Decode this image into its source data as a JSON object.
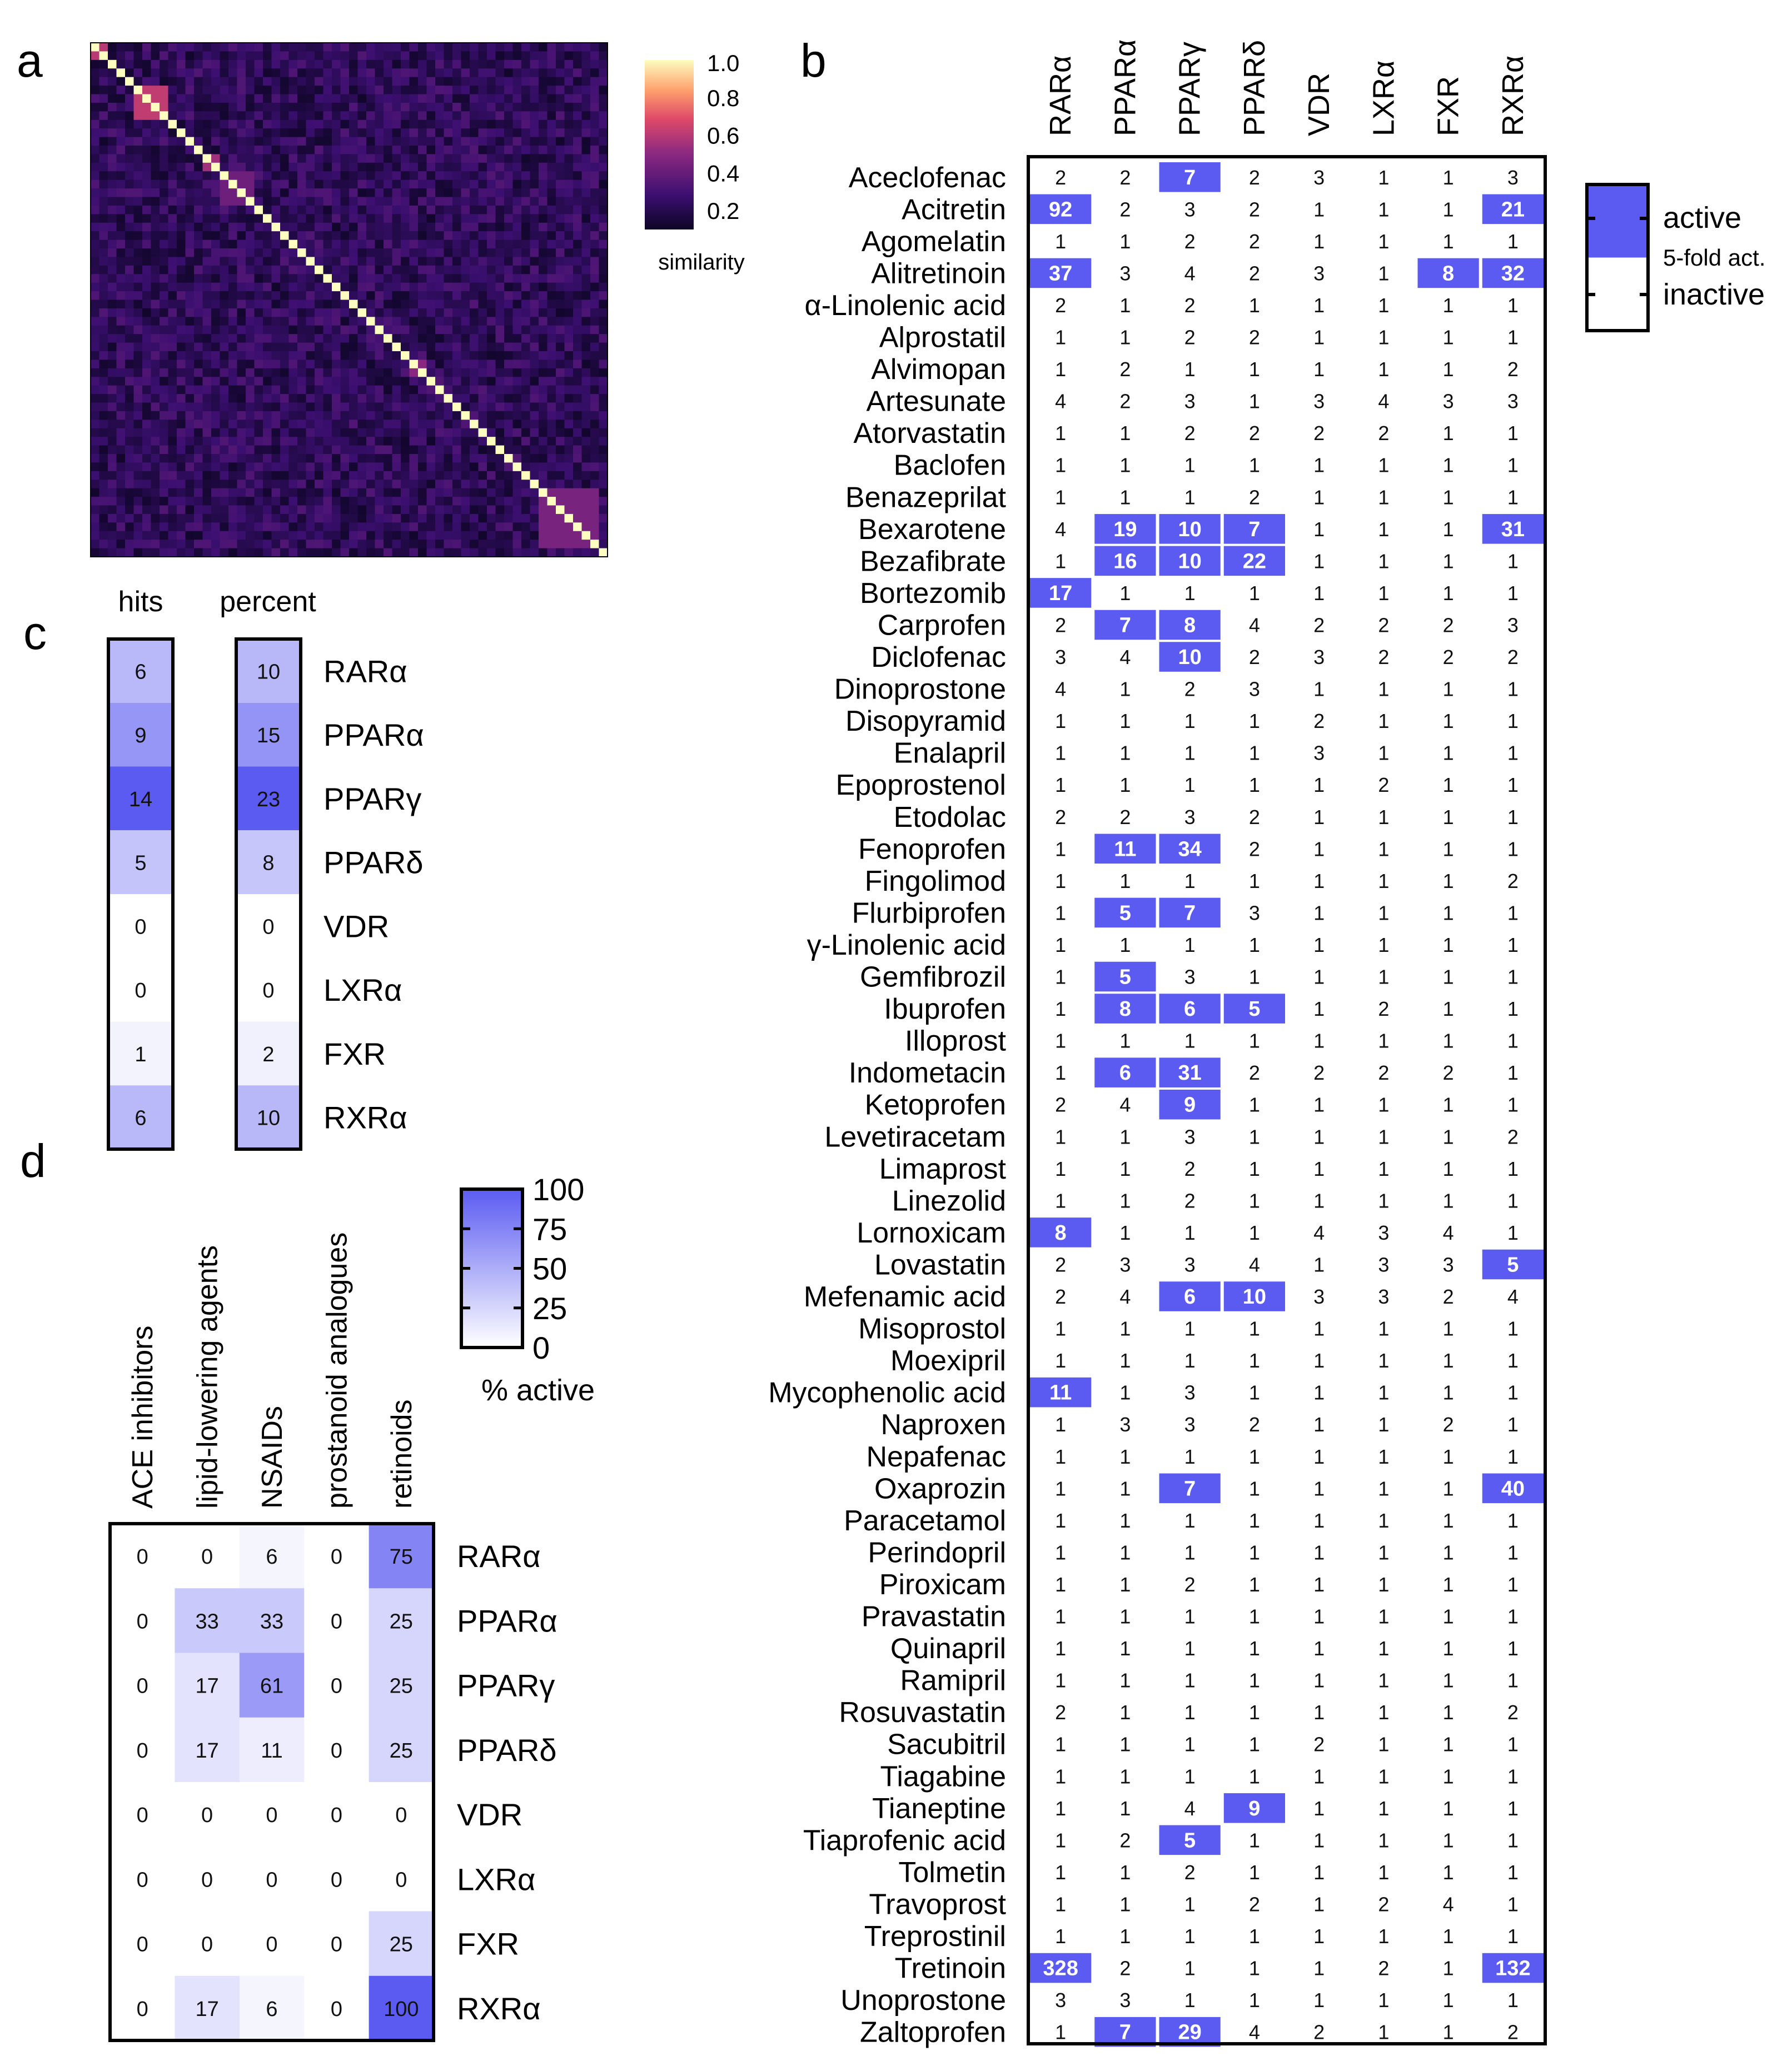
{
  "figure": {
    "panel_letters": [
      "a",
      "b",
      "c",
      "d"
    ]
  },
  "colors": {
    "active": "#5b5bf2",
    "white": "#ffffff",
    "heatmap_dark": "#0d0525",
    "heatmap_light": "#fcfdbf",
    "border": "#000000"
  },
  "chart_data": [
    {
      "panel": "a",
      "type": "heatmap",
      "n": 60,
      "colorbar": {
        "ticks": [
          "1.0",
          "0.8",
          "0.6",
          "0.4",
          "0.2"
        ],
        "label": "similarity",
        "range": [
          0.1,
          1.0
        ]
      },
      "blocks": [
        {
          "from": 0,
          "to": 1,
          "value": 0.6
        },
        {
          "from": 5,
          "to": 8,
          "value": 0.62
        },
        {
          "from": 13,
          "to": 14,
          "value": 0.55
        },
        {
          "from": 15,
          "to": 18,
          "value": 0.42
        },
        {
          "from": 37,
          "to": 38,
          "value": 0.5
        },
        {
          "from": 52,
          "to": 58,
          "value": 0.45
        }
      ]
    },
    {
      "panel": "b",
      "type": "table",
      "columns": [
        "RARα",
        "PPARα",
        "PPARγ",
        "PPARδ",
        "VDR",
        "LXRα",
        "FXR",
        "RXRα"
      ],
      "active_threshold": 5,
      "legend": {
        "active": "active",
        "fold": "5-fold act.",
        "inactive": "inactive"
      },
      "rows": [
        {
          "name": "Aceclofenac",
          "values": [
            2,
            2,
            7,
            2,
            3,
            1,
            1,
            3
          ]
        },
        {
          "name": "Acitretin",
          "values": [
            92,
            2,
            3,
            2,
            1,
            1,
            1,
            21
          ]
        },
        {
          "name": "Agomelatin",
          "values": [
            1,
            1,
            2,
            2,
            1,
            1,
            1,
            1
          ]
        },
        {
          "name": "Alitretinoin",
          "values": [
            37,
            3,
            4,
            2,
            3,
            1,
            8,
            32
          ]
        },
        {
          "name": "α-Linolenic acid",
          "values": [
            2,
            1,
            2,
            1,
            1,
            1,
            1,
            1
          ]
        },
        {
          "name": "Alprostatil",
          "values": [
            1,
            1,
            2,
            2,
            1,
            1,
            1,
            1
          ]
        },
        {
          "name": "Alvimopan",
          "values": [
            1,
            2,
            1,
            1,
            1,
            1,
            1,
            2
          ]
        },
        {
          "name": "Artesunate",
          "values": [
            4,
            2,
            3,
            1,
            3,
            4,
            3,
            3
          ]
        },
        {
          "name": "Atorvastatin",
          "values": [
            1,
            1,
            2,
            2,
            2,
            2,
            1,
            1
          ]
        },
        {
          "name": "Baclofen",
          "values": [
            1,
            1,
            1,
            1,
            1,
            1,
            1,
            1
          ]
        },
        {
          "name": "Benazeprilat",
          "values": [
            1,
            1,
            1,
            2,
            1,
            1,
            1,
            1
          ]
        },
        {
          "name": "Bexarotene",
          "values": [
            4,
            19,
            10,
            7,
            1,
            1,
            1,
            31
          ]
        },
        {
          "name": "Bezafibrate",
          "values": [
            1,
            16,
            10,
            22,
            1,
            1,
            1,
            1
          ]
        },
        {
          "name": "Bortezomib",
          "values": [
            17,
            1,
            1,
            1,
            1,
            1,
            1,
            1
          ]
        },
        {
          "name": "Carprofen",
          "values": [
            2,
            7,
            8,
            4,
            2,
            2,
            2,
            3
          ]
        },
        {
          "name": "Diclofenac",
          "values": [
            3,
            4,
            10,
            2,
            3,
            2,
            2,
            2
          ]
        },
        {
          "name": "Dinoprostone",
          "values": [
            4,
            1,
            2,
            3,
            1,
            1,
            1,
            1
          ]
        },
        {
          "name": "Disopyramid",
          "values": [
            1,
            1,
            1,
            1,
            2,
            1,
            1,
            1
          ]
        },
        {
          "name": "Enalapril",
          "values": [
            1,
            1,
            1,
            1,
            3,
            1,
            1,
            1
          ]
        },
        {
          "name": "Epoprostenol",
          "values": [
            1,
            1,
            1,
            1,
            1,
            2,
            1,
            1
          ]
        },
        {
          "name": "Etodolac",
          "values": [
            2,
            2,
            3,
            2,
            1,
            1,
            1,
            1
          ]
        },
        {
          "name": "Fenoprofen",
          "values": [
            1,
            11,
            34,
            2,
            1,
            1,
            1,
            1
          ]
        },
        {
          "name": "Fingolimod",
          "values": [
            1,
            1,
            1,
            1,
            1,
            1,
            1,
            2
          ]
        },
        {
          "name": "Flurbiprofen",
          "values": [
            1,
            5,
            7,
            3,
            1,
            1,
            1,
            1
          ]
        },
        {
          "name": "γ-Linolenic acid",
          "values": [
            1,
            1,
            1,
            1,
            1,
            1,
            1,
            1
          ]
        },
        {
          "name": "Gemfibrozil",
          "values": [
            1,
            5,
            3,
            1,
            1,
            1,
            1,
            1
          ]
        },
        {
          "name": "Ibuprofen",
          "values": [
            1,
            8,
            6,
            5,
            1,
            2,
            1,
            1
          ]
        },
        {
          "name": "Illoprost",
          "values": [
            1,
            1,
            1,
            1,
            1,
            1,
            1,
            1
          ]
        },
        {
          "name": "Indometacin",
          "values": [
            1,
            6,
            31,
            2,
            2,
            2,
            2,
            1
          ]
        },
        {
          "name": "Ketoprofen",
          "values": [
            2,
            4,
            9,
            1,
            1,
            1,
            1,
            1
          ]
        },
        {
          "name": "Levetiracetam",
          "values": [
            1,
            1,
            3,
            1,
            1,
            1,
            1,
            2
          ]
        },
        {
          "name": "Limaprost",
          "values": [
            1,
            1,
            2,
            1,
            1,
            1,
            1,
            1
          ]
        },
        {
          "name": "Linezolid",
          "values": [
            1,
            1,
            2,
            1,
            1,
            1,
            1,
            1
          ]
        },
        {
          "name": "Lornoxicam",
          "values": [
            8,
            1,
            1,
            1,
            4,
            3,
            4,
            1
          ]
        },
        {
          "name": "Lovastatin",
          "values": [
            2,
            3,
            3,
            4,
            1,
            3,
            3,
            5
          ]
        },
        {
          "name": "Mefenamic acid",
          "values": [
            2,
            4,
            6,
            10,
            3,
            3,
            2,
            4
          ]
        },
        {
          "name": "Misoprostol",
          "values": [
            1,
            1,
            1,
            1,
            1,
            1,
            1,
            1
          ]
        },
        {
          "name": "Moexipril",
          "values": [
            1,
            1,
            1,
            1,
            1,
            1,
            1,
            1
          ]
        },
        {
          "name": "Mycophenolic acid",
          "values": [
            11,
            1,
            3,
            1,
            1,
            1,
            1,
            1
          ]
        },
        {
          "name": "Naproxen",
          "values": [
            1,
            3,
            3,
            2,
            1,
            1,
            2,
            1
          ]
        },
        {
          "name": "Nepafenac",
          "values": [
            1,
            1,
            1,
            1,
            1,
            1,
            1,
            1
          ]
        },
        {
          "name": "Oxaprozin",
          "values": [
            1,
            1,
            7,
            1,
            1,
            1,
            1,
            40
          ]
        },
        {
          "name": "Paracetamol",
          "values": [
            1,
            1,
            1,
            1,
            1,
            1,
            1,
            1
          ]
        },
        {
          "name": "Perindopril",
          "values": [
            1,
            1,
            1,
            1,
            1,
            1,
            1,
            1
          ]
        },
        {
          "name": "Piroxicam",
          "values": [
            1,
            1,
            2,
            1,
            1,
            1,
            1,
            1
          ]
        },
        {
          "name": "Pravastatin",
          "values": [
            1,
            1,
            1,
            1,
            1,
            1,
            1,
            1
          ]
        },
        {
          "name": "Quinapril",
          "values": [
            1,
            1,
            1,
            1,
            1,
            1,
            1,
            1
          ]
        },
        {
          "name": "Ramipril",
          "values": [
            1,
            1,
            1,
            1,
            1,
            1,
            1,
            1
          ]
        },
        {
          "name": "Rosuvastatin",
          "values": [
            2,
            1,
            1,
            1,
            1,
            1,
            1,
            2
          ]
        },
        {
          "name": "Sacubitril",
          "values": [
            1,
            1,
            1,
            1,
            2,
            1,
            1,
            1
          ]
        },
        {
          "name": "Tiagabine",
          "values": [
            1,
            1,
            1,
            1,
            1,
            1,
            1,
            1
          ]
        },
        {
          "name": "Tianeptine",
          "values": [
            1,
            1,
            4,
            9,
            1,
            1,
            1,
            1
          ]
        },
        {
          "name": "Tiaprofenic acid",
          "values": [
            1,
            2,
            5,
            1,
            1,
            1,
            1,
            1
          ]
        },
        {
          "name": "Tolmetin",
          "values": [
            1,
            1,
            2,
            1,
            1,
            1,
            1,
            1
          ]
        },
        {
          "name": "Travoprost",
          "values": [
            1,
            1,
            1,
            2,
            1,
            2,
            4,
            1
          ]
        },
        {
          "name": "Treprostinil",
          "values": [
            1,
            1,
            1,
            1,
            1,
            1,
            1,
            1
          ]
        },
        {
          "name": "Tretinoin",
          "values": [
            328,
            2,
            1,
            1,
            1,
            2,
            1,
            132
          ]
        },
        {
          "name": "Unoprostone",
          "values": [
            3,
            3,
            1,
            1,
            1,
            1,
            1,
            1
          ]
        },
        {
          "name": "Zaltoprofen",
          "values": [
            1,
            7,
            29,
            4,
            2,
            1,
            1,
            2
          ]
        }
      ]
    },
    {
      "panel": "c",
      "type": "heatmap",
      "headers": [
        "hits",
        "percent"
      ],
      "rows": [
        "RARα",
        "PPARα",
        "PPARγ",
        "PPARδ",
        "VDR",
        "LXRα",
        "FXR",
        "RXRα"
      ],
      "hits": [
        6,
        9,
        14,
        5,
        0,
        0,
        1,
        6
      ],
      "percent": [
        10,
        15,
        23,
        8,
        0,
        0,
        2,
        10
      ]
    },
    {
      "panel": "d",
      "type": "heatmap",
      "columns": [
        "ACE inhibitors",
        "lipid-lowering agents",
        "NSAIDs",
        "prostanoid analogues",
        "retinoids"
      ],
      "rows": [
        "RARα",
        "PPARα",
        "PPARγ",
        "PPARδ",
        "VDR",
        "LXRα",
        "FXR",
        "RXRα"
      ],
      "values": [
        [
          0,
          0,
          6,
          0,
          75
        ],
        [
          0,
          33,
          33,
          0,
          25
        ],
        [
          0,
          17,
          61,
          0,
          25
        ],
        [
          0,
          17,
          11,
          0,
          25
        ],
        [
          0,
          0,
          0,
          0,
          0
        ],
        [
          0,
          0,
          0,
          0,
          0
        ],
        [
          0,
          0,
          0,
          0,
          25
        ],
        [
          0,
          17,
          6,
          0,
          100
        ]
      ],
      "colorbar": {
        "ticks": [
          "100",
          "75",
          "50",
          "25",
          "0"
        ],
        "label": "% active",
        "range": [
          0,
          100
        ]
      }
    }
  ]
}
